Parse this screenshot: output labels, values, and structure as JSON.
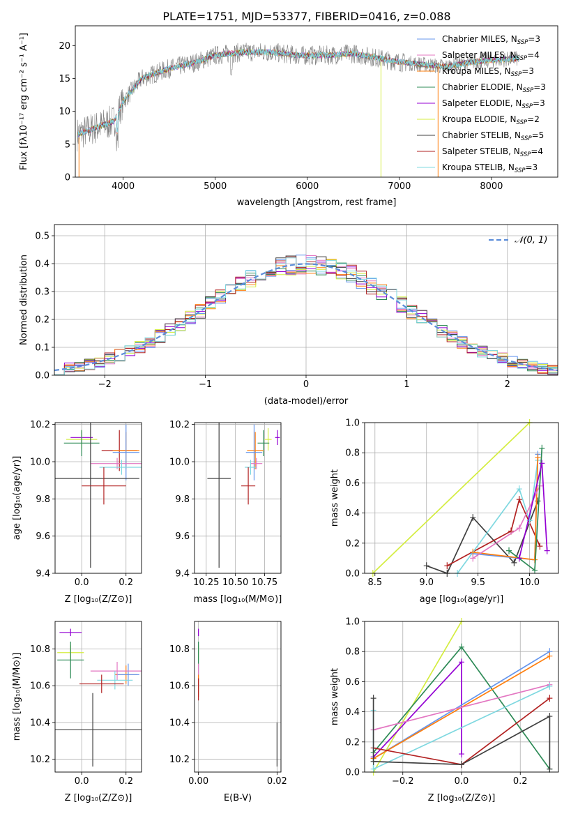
{
  "figure": {
    "title": "PLATE=1751, MJD=53377, FIBERID=0416, z=0.088",
    "spectrum": {
      "xlabel": "wavelength [Angstrom, rest frame]",
      "ylabel": "Flux [fλ10⁻¹⁷ erg cm⁻² s⁻¹ A⁻¹]",
      "xticks": [
        "4000",
        "5000",
        "6000",
        "7000",
        "8000"
      ],
      "yticks": [
        "0",
        "5",
        "10",
        "15",
        "20"
      ],
      "legend": [
        "Chabrier MILES, N_SSP=3",
        "Salpeter MILES, N_SSP=4",
        "Kroupa MILES, N_SSP=3",
        "Chabrier ELODIE, N_SSP=3",
        "Salpeter ELODIE, N_SSP=3",
        "Kroupa ELODIE, N_SSP=2",
        "Chabrier STELIB, N_SSP=5",
        "Salpeter STELIB, N_SSP=4",
        "Kroupa STELIB, N_SSP=3"
      ]
    },
    "residuals": {
      "xlabel": "(data-model)/error",
      "ylabel": "Normed distribution",
      "xticks": [
        "−2",
        "−1",
        "0",
        "1",
        "2"
      ],
      "yticks": [
        "0.0",
        "0.1",
        "0.2",
        "0.3",
        "0.4",
        "0.5"
      ],
      "legend": "𝒩(0, 1)"
    },
    "p_age_z": {
      "xlabel": "Z [log₁₀(Z/Z⊙)]",
      "ylabel": "age  [log₁₀(age/yr)]"
    },
    "p_age_mass": {
      "xlabel": "mass [log₁₀(M/M⊙)]"
    },
    "p_weight_age": {
      "xlabel": "age  [log₁₀(age/yr)]",
      "ylabel": "mass weight"
    },
    "p_mass_z": {
      "xlabel": "Z [log₁₀(Z/Z⊙)]",
      "ylabel": "mass [log₁₀(M/M⊙)]"
    },
    "p_mass_ebv": {
      "xlabel": "E(B-V)"
    },
    "p_weight_z": {
      "xlabel": "Z [log₁₀(Z/Z⊙)]",
      "ylabel": "mass weight"
    }
  },
  "colors": {
    "Chabrier MILES": "#6495ed",
    "Salpeter MILES": "#e377c2",
    "Kroupa MILES": "#ff7f0e",
    "Chabrier ELODIE": "#2e8b57",
    "Salpeter ELODIE": "#9400d3",
    "Kroupa ELODIE": "#d4ed40",
    "Chabrier STELIB": "#404040",
    "Salpeter STELIB": "#b22222",
    "Kroupa STELIB": "#7fd8e0",
    "data": "#808080",
    "gaussian": "#5b8dd9"
  },
  "chart_data": [
    {
      "type": "line",
      "title": "PLATE=1751, MJD=53377, FIBERID=0416, z=0.088",
      "xlabel": "wavelength [Angstrom, rest frame]",
      "ylabel": "Flux",
      "xlim": [
        3480,
        8720
      ],
      "ylim": [
        0,
        23
      ],
      "continuum": {
        "x": [
          3500,
          3700,
          3900,
          4000,
          4200,
          4500,
          4800,
          5000,
          5300,
          5600,
          5900,
          6200,
          6500,
          6800,
          7000,
          7200,
          7500,
          7800,
          8000,
          8300
        ],
        "y": [
          6.5,
          7.5,
          8.5,
          11.5,
          15.0,
          16.5,
          17.5,
          18.5,
          19.0,
          19.0,
          18.5,
          18.5,
          18.8,
          18.0,
          17.5,
          17.2,
          16.8,
          17.5,
          17.8,
          18.0
        ]
      },
      "series": [
        {
          "name": "Chabrier MILES, N_SSP=3"
        },
        {
          "name": "Salpeter MILES, N_SSP=4"
        },
        {
          "name": "Kroupa MILES, N_SSP=3"
        },
        {
          "name": "Chabrier ELODIE, N_SSP=3"
        },
        {
          "name": "Salpeter ELODIE, N_SSP=3"
        },
        {
          "name": "Kroupa ELODIE, N_SSP=2"
        },
        {
          "name": "Chabrier STELIB, N_SSP=5"
        },
        {
          "name": "Salpeter STELIB, N_SSP=4"
        },
        {
          "name": "Kroupa STELIB, N_SSP=3"
        }
      ],
      "legend_position": "top-right"
    },
    {
      "type": "step",
      "xlabel": "(data-model)/error",
      "ylabel": "Normed distribution",
      "xlim": [
        -2.5,
        2.5
      ],
      "ylim": [
        0,
        0.54
      ],
      "bin_width": 0.1,
      "gaussian": {
        "name": "𝒩(0, 1)",
        "mean": 0,
        "sigma": 1
      },
      "grid": true
    },
    {
      "type": "scatter",
      "panel": "age_vs_Z",
      "xlim": [
        -0.12,
        0.27
      ],
      "ylim": [
        9.4,
        10.21
      ],
      "xticks": [
        "0.0",
        "0.2"
      ],
      "yticks": [
        "9.4",
        "9.6",
        "9.8",
        "10.0",
        "10.2"
      ],
      "points": [
        {
          "model": "Salpeter ELODIE",
          "x": 0.0,
          "y": 10.13,
          "ex": 0.05,
          "ey": 0.03
        },
        {
          "model": "Kroupa ELODIE",
          "x": 0.0,
          "y": 10.12,
          "ex": 0.07,
          "ey": 0.05
        },
        {
          "model": "Chabrier ELODIE",
          "x": 0.0,
          "y": 10.1,
          "ex": 0.08,
          "ey": 0.07
        },
        {
          "model": "Salpeter STELIB",
          "x": 0.17,
          "y": 10.06,
          "ex": 0.08,
          "ey": 0.11
        },
        {
          "model": "Kroupa MILES",
          "x": 0.2,
          "y": 10.06,
          "ex": 0.06,
          "ey": 0.1
        },
        {
          "model": "Chabrier MILES",
          "x": 0.2,
          "y": 10.05,
          "ex": 0.06,
          "ey": 0.15
        },
        {
          "model": "Salpeter MILES",
          "x": 0.16,
          "y": 9.99,
          "ex": 0.12,
          "ey": 0.03
        },
        {
          "model": "Kroupa STELIB",
          "x": 0.18,
          "y": 9.97,
          "ex": 0.1,
          "ey": 0.04
        },
        {
          "model": "Chabrier STELIB",
          "x": 0.04,
          "y": 9.91,
          "ex": 0.22,
          "ey": 0.48
        },
        {
          "model": "Salpeter STELIB",
          "x": 0.1,
          "y": 9.87,
          "ex": 0.1,
          "ey": 0.1
        }
      ]
    },
    {
      "type": "scatter",
      "panel": "age_vs_mass",
      "xlim": [
        10.15,
        10.89
      ],
      "ylim": [
        9.4,
        10.21
      ],
      "xticks": [
        "10.25",
        "10.50",
        "10.75"
      ],
      "yticks": [
        "9.4",
        "9.6",
        "9.8",
        "10.0",
        "10.2"
      ],
      "points": [
        {
          "model": "Salpeter ELODIE",
          "x": 10.86,
          "y": 10.13,
          "ex": 0.02,
          "ey": 0.04
        },
        {
          "model": "Kroupa ELODIE",
          "x": 10.78,
          "y": 10.12,
          "ex": 0.03,
          "ey": 0.06
        },
        {
          "model": "Chabrier ELODIE",
          "x": 10.74,
          "y": 10.1,
          "ex": 0.05,
          "ey": 0.07
        },
        {
          "model": "Kroupa MILES",
          "x": 10.67,
          "y": 10.06,
          "ex": 0.07,
          "ey": 0.1
        },
        {
          "model": "Chabrier MILES",
          "x": 10.66,
          "y": 10.05,
          "ex": 0.07,
          "ey": 0.15
        },
        {
          "model": "Salpeter MILES",
          "x": 10.68,
          "y": 9.99,
          "ex": 0.05,
          "ey": 0.03
        },
        {
          "model": "Kroupa STELIB",
          "x": 10.63,
          "y": 9.97,
          "ex": 0.05,
          "ey": 0.04
        },
        {
          "model": "Chabrier STELIB",
          "x": 10.36,
          "y": 9.91,
          "ex": 0.1,
          "ey": 0.48
        },
        {
          "model": "Salpeter STELIB",
          "x": 10.61,
          "y": 9.87,
          "ex": 0.06,
          "ey": 0.1
        }
      ]
    },
    {
      "type": "line",
      "panel": "weight_vs_age",
      "xlim": [
        8.4,
        10.28
      ],
      "ylim": [
        0,
        1
      ],
      "xticks": [
        "8.5",
        "9.0",
        "9.5",
        "10.0"
      ],
      "yticks": [
        "0.0",
        "0.2",
        "0.4",
        "0.6",
        "0.8",
        "1.0"
      ],
      "series": [
        {
          "model": "Kroupa ELODIE",
          "points": [
            [
              8.48,
              0.0
            ],
            [
              10.0,
              1.0
            ]
          ]
        },
        {
          "model": "Chabrier STELIB",
          "points": [
            [
              9.0,
              0.05
            ],
            [
              9.2,
              0.0
            ],
            [
              9.45,
              0.37
            ],
            [
              9.85,
              0.07
            ],
            [
              10.08,
              0.48
            ]
          ]
        },
        {
          "model": "Salpeter STELIB",
          "points": [
            [
              9.2,
              0.05
            ],
            [
              9.82,
              0.28
            ],
            [
              9.9,
              0.49
            ],
            [
              10.1,
              0.18
            ]
          ]
        },
        {
          "model": "Kroupa STELIB",
          "points": [
            [
              9.3,
              0.0
            ],
            [
              9.9,
              0.56
            ],
            [
              10.0,
              0.35
            ],
            [
              10.08,
              0.75
            ]
          ]
        },
        {
          "model": "Chabrier MILES",
          "points": [
            [
              9.45,
              0.13
            ],
            [
              10.05,
              0.09
            ],
            [
              10.08,
              0.79
            ]
          ]
        },
        {
          "model": "Kroupa MILES",
          "points": [
            [
              9.45,
              0.14
            ],
            [
              10.05,
              0.09
            ],
            [
              10.08,
              0.77
            ]
          ]
        },
        {
          "model": "Salpeter MILES",
          "points": [
            [
              9.45,
              0.1
            ],
            [
              9.9,
              0.3
            ],
            [
              10.1,
              0.58
            ]
          ]
        },
        {
          "model": "Chabrier ELODIE",
          "points": [
            [
              9.8,
              0.15
            ],
            [
              10.05,
              0.02
            ],
            [
              10.12,
              0.83
            ]
          ]
        },
        {
          "model": "Salpeter ELODIE",
          "points": [
            [
              9.9,
              0.1
            ],
            [
              10.12,
              0.73
            ],
            [
              10.17,
              0.15
            ]
          ]
        }
      ]
    },
    {
      "type": "scatter",
      "panel": "mass_vs_Z",
      "xlim": [
        -0.12,
        0.27
      ],
      "ylim": [
        10.13,
        10.95
      ],
      "xticks": [
        "0.0",
        "0.2"
      ],
      "yticks": [
        "10.2",
        "10.4",
        "10.6",
        "10.8"
      ],
      "points": [
        {
          "model": "Salpeter ELODIE",
          "x": -0.05,
          "y": 10.89,
          "ex": 0.05,
          "ey": 0.02
        },
        {
          "model": "Kroupa ELODIE",
          "x": -0.05,
          "y": 10.78,
          "ex": 0.06,
          "ey": 0.04
        },
        {
          "model": "Chabrier ELODIE",
          "x": -0.05,
          "y": 10.74,
          "ex": 0.06,
          "ey": 0.1
        },
        {
          "model": "Kroupa MILES",
          "x": 0.2,
          "y": 10.66,
          "ex": 0.05,
          "ey": 0.05
        },
        {
          "model": "Chabrier MILES",
          "x": 0.21,
          "y": 10.66,
          "ex": 0.05,
          "ey": 0.06
        },
        {
          "model": "Salpeter MILES",
          "x": 0.16,
          "y": 10.68,
          "ex": 0.12,
          "ey": 0.05
        },
        {
          "model": "Kroupa STELIB",
          "x": 0.15,
          "y": 10.63,
          "ex": 0.08,
          "ey": 0.05
        },
        {
          "model": "Salpeter STELIB",
          "x": 0.09,
          "y": 10.61,
          "ex": 0.1,
          "ey": 0.05
        },
        {
          "model": "Chabrier STELIB",
          "x": 0.05,
          "y": 10.36,
          "ex": 0.22,
          "ey": 0.2
        }
      ]
    },
    {
      "type": "scatter",
      "panel": "mass_vs_EBV",
      "xlim": [
        -0.001,
        0.021
      ],
      "ylim": [
        10.13,
        10.95
      ],
      "xticks": [
        "0.00",
        "0.02"
      ],
      "yticks": [
        "10.2",
        "10.4",
        "10.6",
        "10.8"
      ],
      "points": [
        {
          "model": "Salpeter ELODIE",
          "x": 0.0,
          "y": 10.89,
          "ey": 0.02
        },
        {
          "model": "Kroupa ELODIE",
          "x": 0.0,
          "y": 10.78,
          "ey": 0.04
        },
        {
          "model": "Chabrier ELODIE",
          "x": 0.0,
          "y": 10.74,
          "ey": 0.1
        },
        {
          "model": "Kroupa STELIB",
          "x": 0.0,
          "y": 10.63,
          "ey": 0.08
        },
        {
          "model": "Salpeter MILES",
          "x": 0.0,
          "y": 10.66,
          "ey": 0.06
        },
        {
          "model": "Kroupa MILES",
          "x": 0.0,
          "y": 10.6,
          "ey": 0.06
        },
        {
          "model": "Salpeter STELIB",
          "x": 0.0,
          "y": 10.58,
          "ey": 0.06
        },
        {
          "model": "Chabrier STELIB",
          "x": 0.02,
          "y": 10.28,
          "ey": 0.12
        }
      ]
    },
    {
      "type": "line",
      "panel": "weight_vs_Z",
      "xlim": [
        -0.33,
        0.33
      ],
      "ylim": [
        0,
        1
      ],
      "xticks": [
        "−0.2",
        "0.0",
        "0.2"
      ],
      "yticks": [
        "0.0",
        "0.2",
        "0.4",
        "0.6",
        "0.8",
        "1.0"
      ],
      "series": [
        {
          "model": "Kroupa ELODIE",
          "points": [
            [
              -0.3,
              0.0
            ],
            [
              0.0,
              1.0
            ]
          ]
        },
        {
          "model": "Chabrier ELODIE",
          "points": [
            [
              -0.3,
              0.13
            ],
            [
              0.0,
              0.83
            ],
            [
              0.3,
              0.02
            ]
          ]
        },
        {
          "model": "Salpeter ELODIE",
          "points": [
            [
              -0.3,
              0.1
            ],
            [
              0.0,
              0.73
            ],
            [
              0.0,
              0.12
            ]
          ]
        },
        {
          "model": "Chabrier MILES",
          "points": [
            [
              -0.3,
              0.09
            ],
            [
              0.3,
              0.8
            ]
          ]
        },
        {
          "model": "Kroupa MILES",
          "points": [
            [
              -0.3,
              0.09
            ],
            [
              0.3,
              0.77
            ]
          ]
        },
        {
          "model": "Salpeter MILES",
          "points": [
            [
              -0.3,
              0.28
            ],
            [
              0.3,
              0.58
            ]
          ]
        },
        {
          "model": "Kroupa STELIB",
          "points": [
            [
              -0.3,
              0.41
            ],
            [
              -0.3,
              0.02
            ],
            [
              0.3,
              0.57
            ]
          ]
        },
        {
          "model": "Salpeter STELIB",
          "points": [
            [
              -0.3,
              0.16
            ],
            [
              0.0,
              0.05
            ],
            [
              0.3,
              0.49
            ]
          ]
        },
        {
          "model": "Chabrier STELIB",
          "points": [
            [
              -0.3,
              0.49
            ],
            [
              -0.3,
              0.07
            ],
            [
              0.0,
              0.05
            ],
            [
              0.3,
              0.37
            ],
            [
              0.3,
              0.02
            ]
          ]
        }
      ]
    }
  ]
}
